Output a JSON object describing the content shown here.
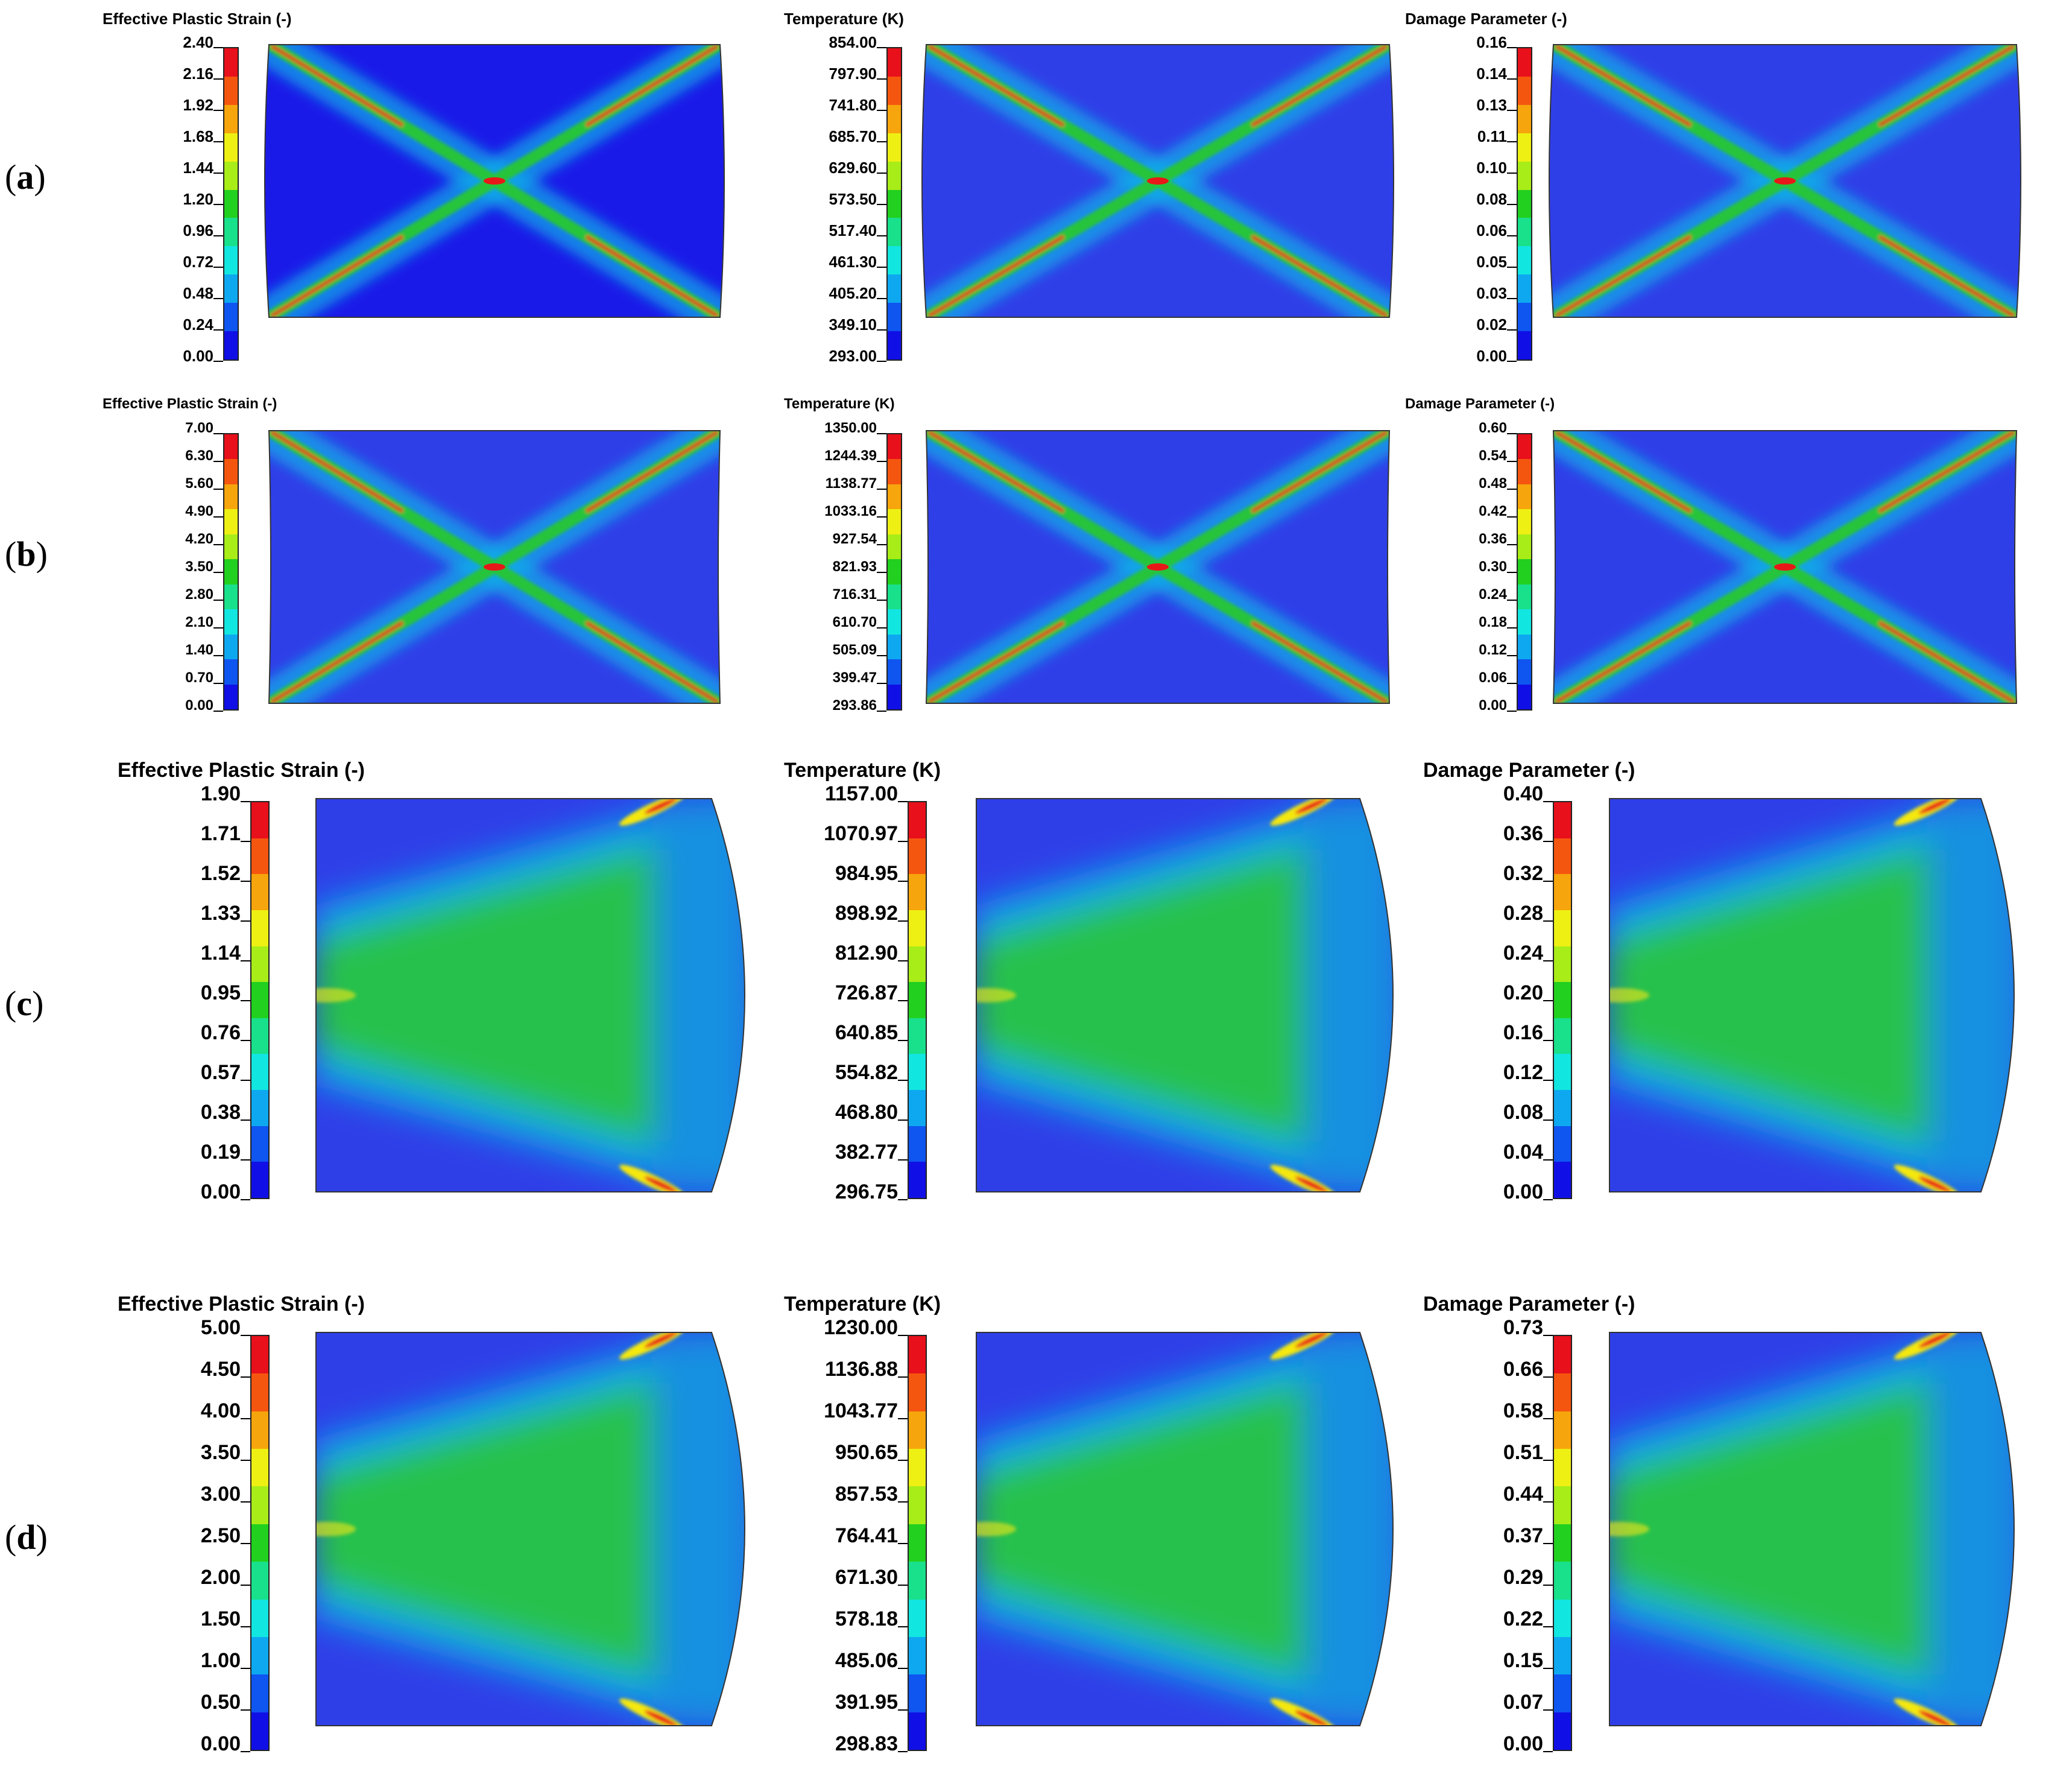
{
  "rows": [
    {
      "label_open": "(",
      "label_letter": "a",
      "label_close": ")",
      "shape": "cross",
      "panels": [
        {
          "title": "Effective Plastic Strain (-)",
          "ticks": [
            "2.40",
            "2.16",
            "1.92",
            "1.68",
            "1.44",
            "1.20",
            "0.96",
            "0.72",
            "0.48",
            "0.24",
            "0.00"
          ]
        },
        {
          "title": "Temperature (K)",
          "ticks": [
            "854.00",
            "797.90",
            "741.80",
            "685.70",
            "629.60",
            "573.50",
            "517.40",
            "461.30",
            "405.20",
            "349.10",
            "293.00"
          ]
        },
        {
          "title": "Damage Parameter (-)",
          "ticks": [
            "0.16",
            "0.14",
            "0.13",
            "0.11",
            "0.10",
            "0.08",
            "0.06",
            "0.05",
            "0.03",
            "0.02",
            "0.00"
          ]
        }
      ]
    },
    {
      "label_open": "(",
      "label_letter": "b",
      "label_close": ")",
      "shape": "cross",
      "panels": [
        {
          "title": "Effective Plastic Strain (-)",
          "ticks": [
            "7.00",
            "6.30",
            "5.60",
            "4.90",
            "4.20",
            "3.50",
            "2.80",
            "2.10",
            "1.40",
            "0.70",
            "0.00"
          ]
        },
        {
          "title": "Temperature (K)",
          "ticks": [
            "1350.00",
            "1244.39",
            "1138.77",
            "1033.16",
            "927.54",
            "821.93",
            "716.31",
            "610.70",
            "505.09",
            "399.47",
            "293.86"
          ]
        },
        {
          "title": "Damage Parameter (-)",
          "ticks": [
            "0.60",
            "0.54",
            "0.48",
            "0.42",
            "0.36",
            "0.30",
            "0.24",
            "0.18",
            "0.12",
            "0.06",
            "0.00"
          ]
        }
      ]
    },
    {
      "label_open": "(",
      "label_letter": "c",
      "label_close": ")",
      "shape": "half",
      "panels": [
        {
          "title": "Effective Plastic Strain (-)",
          "ticks": [
            "1.90",
            "1.71",
            "1.52",
            "1.33",
            "1.14",
            "0.95",
            "0.76",
            "0.57",
            "0.38",
            "0.19",
            "0.00"
          ]
        },
        {
          "title": "Temperature (K)",
          "ticks": [
            "1157.00",
            "1070.97",
            "984.95",
            "898.92",
            "812.90",
            "726.87",
            "640.85",
            "554.82",
            "468.80",
            "382.77",
            "296.75"
          ]
        },
        {
          "title": "Damage Parameter (-)",
          "ticks": [
            "0.40",
            "0.36",
            "0.32",
            "0.28",
            "0.24",
            "0.20",
            "0.16",
            "0.12",
            "0.08",
            "0.04",
            "0.00"
          ]
        }
      ]
    },
    {
      "label_open": "(",
      "label_letter": "d",
      "label_close": ")",
      "shape": "half",
      "panels": [
        {
          "title": "Effective Plastic Strain (-)",
          "ticks": [
            "5.00",
            "4.50",
            "4.00",
            "3.50",
            "3.00",
            "2.50",
            "2.00",
            "1.50",
            "1.00",
            "0.50",
            "0.00"
          ]
        },
        {
          "title": "Temperature (K)",
          "ticks": [
            "1230.00",
            "1136.88",
            "1043.77",
            "950.65",
            "857.53",
            "764.41",
            "671.30",
            "578.18",
            "485.06",
            "391.95",
            "298.83"
          ]
        },
        {
          "title": "Damage Parameter (-)",
          "ticks": [
            "0.73",
            "0.66",
            "0.58",
            "0.51",
            "0.44",
            "0.37",
            "0.29",
            "0.22",
            "0.15",
            "0.07",
            "0.00"
          ]
        }
      ]
    }
  ],
  "colormap": [
    "#e8101a",
    "#f5560f",
    "#f6a50c",
    "#eef013",
    "#a8ec18",
    "#22d01f",
    "#19e08a",
    "#12e6e0",
    "#0ea8f0",
    "#0f55f0",
    "#1010e6"
  ],
  "field_colors": {
    "background": "#2f3fe8",
    "deep": "#1a1ae8",
    "band": "#27c43a",
    "band_edge": "#0fb0e8",
    "hot": "#e81818",
    "hot2": "#f5e80f",
    "cool_outer": "#1c8ae0"
  }
}
